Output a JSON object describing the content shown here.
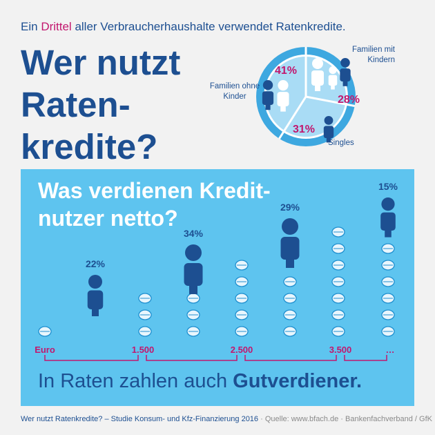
{
  "intro": {
    "before": "Ein",
    "highlight": "Drittel",
    "after": "aller Verbraucherhaushalte verwendet Ratenkredite."
  },
  "headline": "Wer nutzt Raten-kredite?",
  "chart_data": [
    {
      "type": "pie",
      "categories": [
        "Familien mit Kindern",
        "Singles",
        "Familien ohne Kinder"
      ],
      "values": [
        28,
        31,
        41
      ],
      "value_labels": [
        "28%",
        "31%",
        "41%"
      ],
      "color": "#a9dcf5",
      "ring_color": "#3ea8e0"
    },
    {
      "type": "pictogram",
      "title": "Was verdienen Kredit-nutzer netto?",
      "categories": [
        null,
        null,
        null,
        null
      ],
      "values": [
        22,
        34,
        29,
        15
      ],
      "value_labels": [
        "22%",
        "34%",
        "29%",
        "15%"
      ],
      "x_labels": [
        "Euro",
        "1.500",
        "2.500",
        "3.500",
        "…"
      ],
      "color": "#1d4f91"
    }
  ],
  "tagline": {
    "regular": "In Raten zahlen auch",
    "bold": "Gutverdiener."
  },
  "footer": {
    "title": "Wer nutzt Ratenkredite? – Studie Konsum- und Kfz-Finanzierung 2016",
    "source": "· Quelle: www.bfach.de · Bankenfachverband / GfK"
  }
}
